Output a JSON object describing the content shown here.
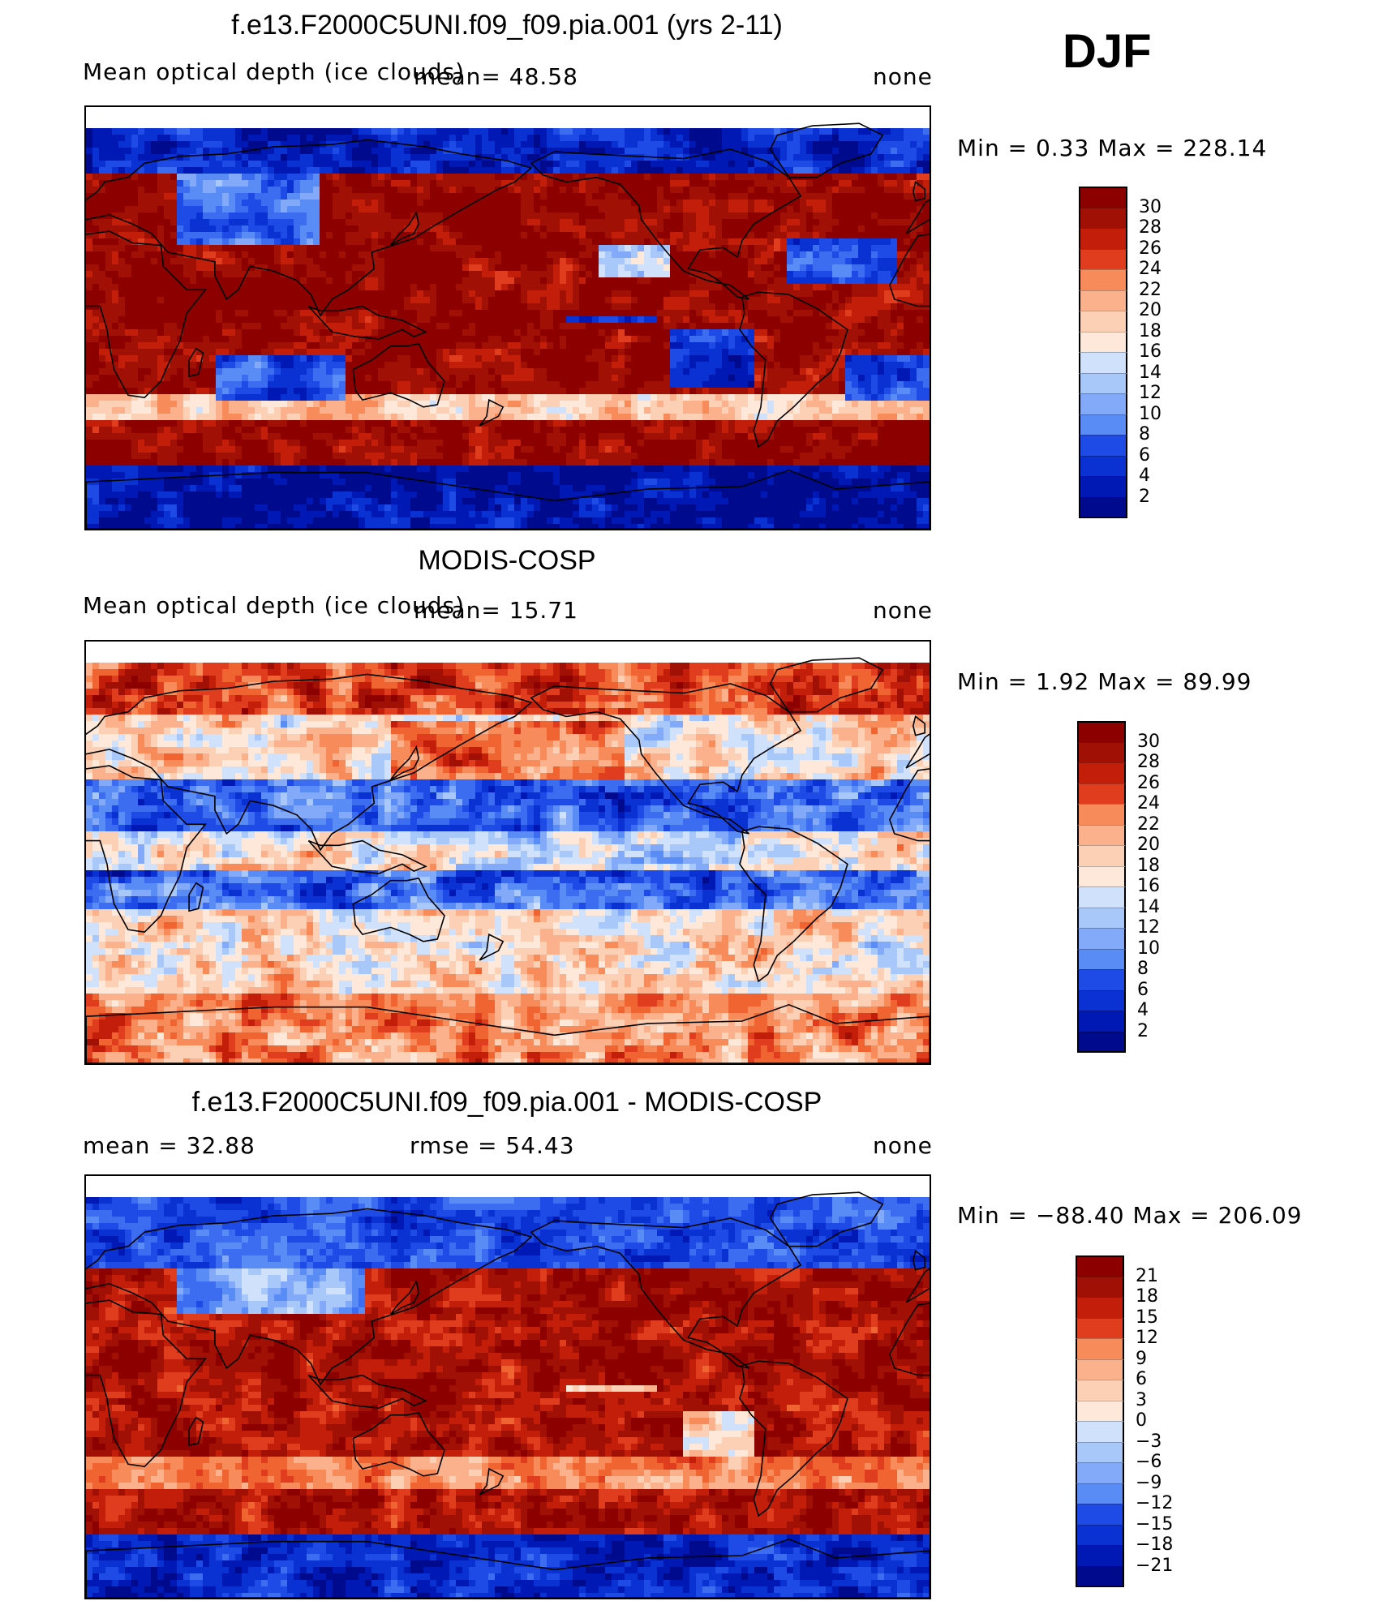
{
  "season": "DJF",
  "colors": {
    "scale": [
      "#000a8c",
      "#0019b4",
      "#0a32d2",
      "#1e4be6",
      "#3c6cf0",
      "#5a8cf5",
      "#82aaf8",
      "#a8c8fa",
      "#cfe1fb",
      "#fde8da",
      "#fcd0b4",
      "#fab18c",
      "#f78c5a",
      "#f06432",
      "#e03c1e",
      "#c21e0a",
      "#a01005",
      "#8c0000"
    ],
    "coast": "#000000"
  },
  "panels": [
    {
      "title": "f.e13.F2000C5UNI.f09_f09.pia.001 (yrs 2-11)",
      "left_label": "Mean optical depth (ice clouds)",
      "stat1": "mean=   48.58",
      "stat2": "",
      "right_label": "none",
      "range_text": "Min =    0.33  Max  =  228.14",
      "chart_data": {
        "type": "heatmap",
        "title": "f.e13.F2000C5UNI.f09_f09.pia.001 (yrs 2-11)",
        "variable": "Mean optical depth (ice clouds)",
        "units": "none",
        "mean": 48.58,
        "min": 0.33,
        "max": 228.14,
        "levels": [
          2,
          4,
          6,
          8,
          10,
          12,
          14,
          16,
          18,
          20,
          22,
          24,
          26,
          28,
          30
        ]
      },
      "colorbar_ticks": [
        "30",
        "28",
        "26",
        "24",
        "22",
        "20",
        "18",
        "16",
        "14",
        "12",
        "10",
        "8",
        "6",
        "4",
        "2"
      ]
    },
    {
      "title": "MODIS-COSP",
      "left_label": "Mean optical depth (ice clouds)",
      "stat1": "mean=   15.71",
      "stat2": "",
      "right_label": "none",
      "range_text": "Min =    1.92  Max  =   89.99",
      "chart_data": {
        "type": "heatmap",
        "title": "MODIS-COSP",
        "variable": "Mean optical depth (ice clouds)",
        "units": "none",
        "mean": 15.71,
        "min": 1.92,
        "max": 89.99,
        "levels": [
          2,
          4,
          6,
          8,
          10,
          12,
          14,
          16,
          18,
          20,
          22,
          24,
          26,
          28,
          30
        ]
      },
      "colorbar_ticks": [
        "30",
        "28",
        "26",
        "24",
        "22",
        "20",
        "18",
        "16",
        "14",
        "12",
        "10",
        "8",
        "6",
        "4",
        "2"
      ]
    },
    {
      "title": "f.e13.F2000C5UNI.f09_f09.pia.001 - MODIS-COSP",
      "left_label": "mean =   32.88",
      "stat1": "",
      "stat2": "rmse =   54.43",
      "right_label": "none",
      "range_text": "Min = −88.40  Max  =  206.09",
      "chart_data": {
        "type": "heatmap",
        "title": "f.e13.F2000C5UNI.f09_f09.pia.001 - MODIS-COSP",
        "units": "none",
        "mean": 32.88,
        "rmse": 54.43,
        "min": -88.4,
        "max": 206.09,
        "levels": [
          -21,
          -18,
          -15,
          -12,
          -9,
          -6,
          -3,
          0,
          3,
          6,
          9,
          12,
          15,
          18,
          21
        ]
      },
      "colorbar_ticks": [
        "21",
        "18",
        "15",
        "12",
        "9",
        "6",
        "3",
        "0",
        "−3",
        "−6",
        "−9",
        "−12",
        "−15",
        "−18",
        "−21"
      ]
    }
  ]
}
